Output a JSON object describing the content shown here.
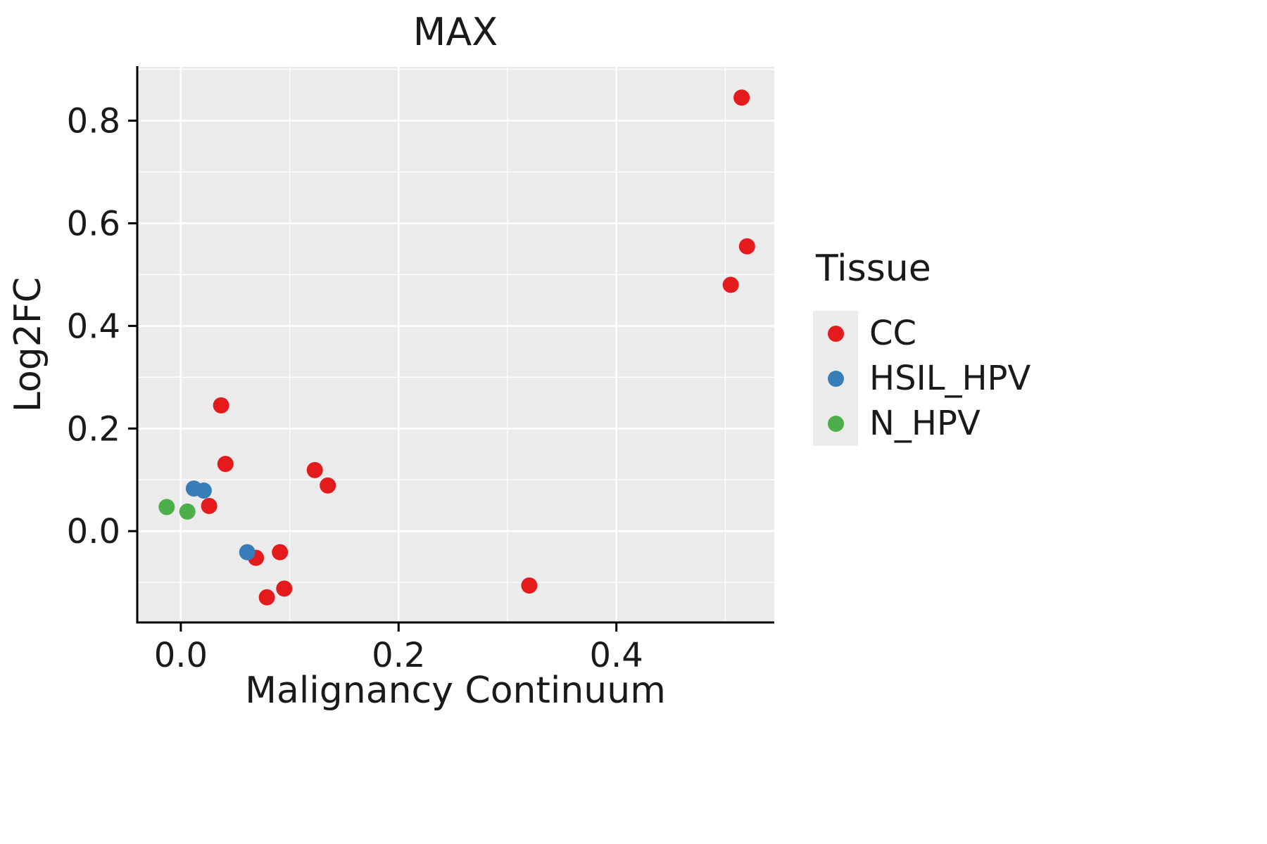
{
  "chart_data": {
    "type": "scatter",
    "title": "MAX",
    "xlabel": "Malignancy Continuum",
    "ylabel": "Log2FC",
    "xlim": [
      -0.04,
      0.545
    ],
    "ylim": [
      -0.178,
      0.905
    ],
    "x_ticks": [
      0.0,
      0.2,
      0.4
    ],
    "x_tick_labels": [
      "0.0",
      "0.2",
      "0.4"
    ],
    "y_ticks": [
      0.0,
      0.2,
      0.4,
      0.6,
      0.8
    ],
    "y_tick_labels": [
      "0.0",
      "0.2",
      "0.4",
      "0.6",
      "0.8"
    ],
    "x_minor_ticks": [
      0.1,
      0.3,
      0.5
    ],
    "y_minor_ticks": [
      -0.1,
      0.1,
      0.3,
      0.5,
      0.7,
      0.9
    ],
    "grid": true,
    "panel_bg": "#EBEBEB",
    "grid_color": "#FFFFFF",
    "axis_color": "#000000",
    "text_color": "#1a1a1a",
    "legend_title": "Tissue",
    "legend_position": "right",
    "point_radius": 11.5,
    "series": [
      {
        "name": "CC",
        "color": "#E41A1C",
        "points": [
          [
            0.515,
            0.845
          ],
          [
            0.52,
            0.555
          ],
          [
            0.505,
            0.48
          ],
          [
            0.037,
            0.245
          ],
          [
            0.041,
            0.131
          ],
          [
            0.123,
            0.119
          ],
          [
            0.135,
            0.089
          ],
          [
            0.026,
            0.049
          ],
          [
            0.069,
            -0.052
          ],
          [
            0.091,
            -0.041
          ],
          [
            0.079,
            -0.129
          ],
          [
            0.095,
            -0.112
          ],
          [
            0.32,
            -0.106
          ]
        ]
      },
      {
        "name": "HSIL_HPV",
        "color": "#377EB8",
        "points": [
          [
            0.012,
            0.083
          ],
          [
            0.021,
            0.079
          ],
          [
            0.061,
            -0.041
          ]
        ]
      },
      {
        "name": "N_HPV",
        "color": "#4DAF4A",
        "points": [
          [
            -0.013,
            0.047
          ],
          [
            0.006,
            0.038
          ]
        ]
      }
    ]
  }
}
